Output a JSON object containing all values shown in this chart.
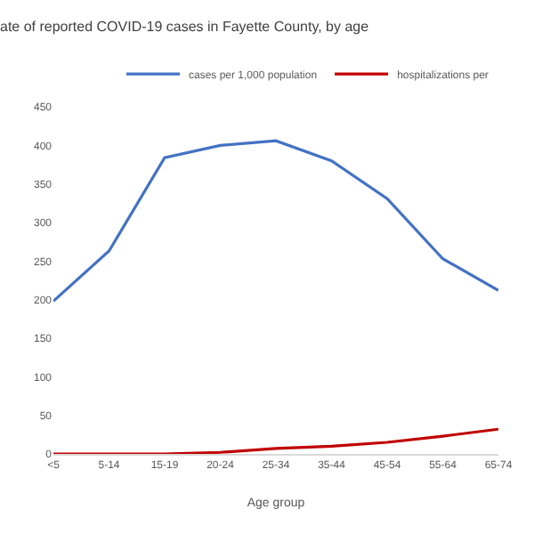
{
  "chart_data": {
    "type": "line",
    "title": "ate of reported COVID-19 cases in Fayette County, by age",
    "xlabel": "Age group",
    "categories": [
      "<5",
      "5-14",
      "15-19",
      "20-24",
      "25-34",
      "35-44",
      "45-54",
      "55-64",
      "65-74"
    ],
    "series": [
      {
        "name": "cases per 1,000 population",
        "color": "#4472c4",
        "values": [
          198,
          263,
          384,
          400,
          406,
          380,
          331,
          253,
          212
        ]
      },
      {
        "name": "hospitalizations per",
        "color": "#c00000",
        "values": [
          0,
          0,
          0,
          2,
          7,
          10,
          15,
          23,
          32
        ]
      }
    ],
    "ylim": [
      0,
      450
    ],
    "yticks": [
      0,
      50,
      100,
      150,
      200,
      250,
      300,
      350,
      400,
      450
    ],
    "legend": "top right",
    "marker": "none",
    "line_style": "solid"
  }
}
